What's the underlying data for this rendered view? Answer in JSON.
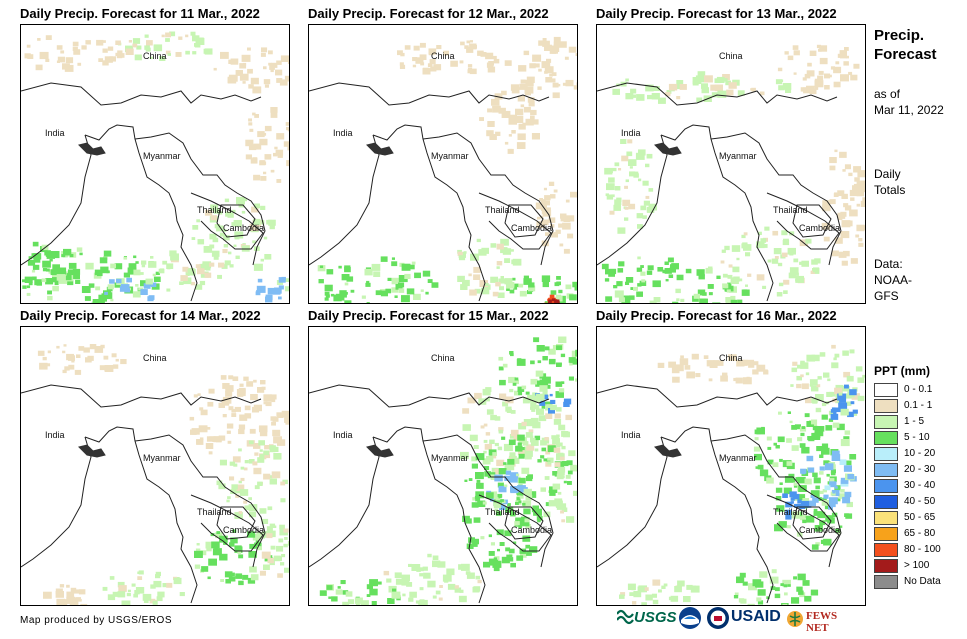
{
  "panels": [
    {
      "title": "Daily Precip. Forecast for 11 Mar., 2022"
    },
    {
      "title": "Daily Precip. Forecast for 12 Mar., 2022"
    },
    {
      "title": "Daily Precip. Forecast for 13 Mar., 2022"
    },
    {
      "title": "Daily Precip. Forecast for 14 Mar., 2022"
    },
    {
      "title": "Daily Precip. Forecast for 15 Mar., 2022"
    },
    {
      "title": "Daily Precip. Forecast for 16 Mar., 2022"
    }
  ],
  "map_labels": {
    "china": "China",
    "india": "India",
    "myanmar": "Myanmar",
    "thailand": "Thailand",
    "cambodia": "Cambodia"
  },
  "side": {
    "title_line1": "Precip.",
    "title_line2": "Forecast",
    "asof_line1": "as of",
    "asof_line2": "Mar 11, 2022",
    "totals_line1": "Daily",
    "totals_line2": "Totals",
    "data_line1": "Data:",
    "data_line2": "NOAA-",
    "data_line3": "GFS"
  },
  "legend": {
    "title": "PPT (mm)",
    "items": [
      {
        "label": "0 - 0.1",
        "color": "#ffffff"
      },
      {
        "label": "0.1 - 1",
        "color": "#eedfc0"
      },
      {
        "label": "1 - 5",
        "color": "#c7f5b3"
      },
      {
        "label": "5 - 10",
        "color": "#66e05e"
      },
      {
        "label": "10 - 20",
        "color": "#b9eefa"
      },
      {
        "label": "20 - 30",
        "color": "#7fbcf4"
      },
      {
        "label": "30 - 40",
        "color": "#4b94ee"
      },
      {
        "label": "40 - 50",
        "color": "#1f5ee0"
      },
      {
        "label": "50 - 65",
        "color": "#fbe27a"
      },
      {
        "label": "65 - 80",
        "color": "#f7a21b"
      },
      {
        "label": "80 - 100",
        "color": "#f4501e"
      },
      {
        "label": "> 100",
        "color": "#a31b1b"
      },
      {
        "label": "No Data",
        "color": "#8c8c8c"
      }
    ]
  },
  "footer": {
    "credit": "Map produced by USGS/EROS",
    "usgs": "USGS",
    "usaid": "USAID",
    "fewsnet": "FEWS NET"
  }
}
